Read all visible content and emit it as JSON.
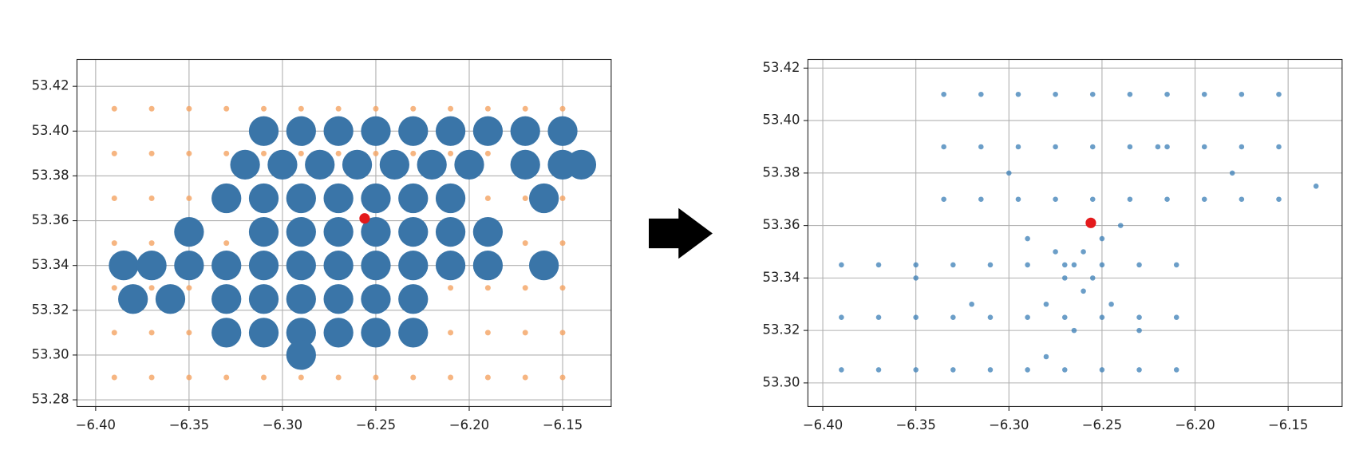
{
  "chart_data": [
    {
      "type": "scatter",
      "xlim": [
        -6.41,
        -6.124
      ],
      "ylim": [
        53.277,
        53.432
      ],
      "grid": true,
      "xticks": [
        {
          "value": -6.4,
          "label": "−6.40"
        },
        {
          "value": -6.35,
          "label": "−6.35"
        },
        {
          "value": -6.3,
          "label": "−6.30"
        },
        {
          "value": -6.25,
          "label": "−6.25"
        },
        {
          "value": -6.2,
          "label": "−6.20"
        },
        {
          "value": -6.15,
          "label": "−6.15"
        }
      ],
      "yticks": [
        {
          "value": 53.28,
          "label": "53.28"
        },
        {
          "value": 53.3,
          "label": "53.30"
        },
        {
          "value": 53.32,
          "label": "53.32"
        },
        {
          "value": 53.34,
          "label": "53.34"
        },
        {
          "value": 53.36,
          "label": "53.36"
        },
        {
          "value": 53.38,
          "label": "53.38"
        },
        {
          "value": 53.4,
          "label": "53.40"
        },
        {
          "value": 53.42,
          "label": "53.42"
        }
      ],
      "series": [
        {
          "color": "#f4a261",
          "x": [
            -6.39,
            -6.37,
            -6.35,
            -6.33,
            -6.31,
            -6.29,
            -6.27,
            -6.25,
            -6.23,
            -6.21,
            -6.19,
            -6.17,
            -6.15,
            -6.39,
            -6.37,
            -6.35,
            -6.33,
            -6.31,
            -6.29,
            -6.27,
            -6.25,
            -6.23,
            -6.21,
            -6.19,
            -6.17,
            -6.15,
            -6.39,
            -6.37,
            -6.35,
            -6.33,
            -6.31,
            -6.29,
            -6.27,
            -6.25,
            -6.23,
            -6.21,
            -6.19,
            -6.17,
            -6.15,
            -6.39,
            -6.37,
            -6.35,
            -6.33,
            -6.31,
            -6.29,
            -6.27,
            -6.25,
            -6.23,
            -6.21,
            -6.19,
            -6.17,
            -6.15,
            -6.39,
            -6.37,
            -6.35,
            -6.33,
            -6.31,
            -6.29,
            -6.27,
            -6.25,
            -6.23,
            -6.21,
            -6.19,
            -6.17,
            -6.15,
            -6.39,
            -6.37,
            -6.35,
            -6.33,
            -6.31,
            -6.29,
            -6.27,
            -6.25,
            -6.23,
            -6.21,
            -6.19,
            -6.17,
            -6.15,
            -6.39,
            -6.37,
            -6.35,
            -6.33,
            -6.31,
            -6.29,
            -6.27,
            -6.25,
            -6.23,
            -6.21,
            -6.19,
            -6.17,
            -6.15
          ],
          "y": [
            53.29,
            53.29,
            53.29,
            53.29,
            53.29,
            53.29,
            53.29,
            53.29,
            53.29,
            53.29,
            53.29,
            53.29,
            53.29,
            53.31,
            53.31,
            53.31,
            53.31,
            53.31,
            53.31,
            53.31,
            53.31,
            53.31,
            53.31,
            53.31,
            53.31,
            53.31,
            53.33,
            53.33,
            53.33,
            53.33,
            53.33,
            53.33,
            53.33,
            53.33,
            53.33,
            53.33,
            53.33,
            53.33,
            53.33,
            53.35,
            53.35,
            53.35,
            53.35,
            53.35,
            53.35,
            53.35,
            53.35,
            53.35,
            53.35,
            53.35,
            53.35,
            53.35,
            53.37,
            53.37,
            53.37,
            53.37,
            53.37,
            53.37,
            53.37,
            53.37,
            53.37,
            53.37,
            53.37,
            53.37,
            53.37,
            53.39,
            53.39,
            53.39,
            53.39,
            53.39,
            53.39,
            53.39,
            53.39,
            53.39,
            53.39,
            53.39,
            53.39,
            53.39,
            53.41,
            53.41,
            53.41,
            53.41,
            53.41,
            53.41,
            53.41,
            53.41,
            53.41,
            53.41,
            53.41,
            53.41,
            53.41
          ]
        },
        {
          "color": "#3a75a8",
          "x": [
            -6.31,
            -6.29,
            -6.27,
            -6.25,
            -6.23,
            -6.21,
            -6.19,
            -6.17,
            -6.15,
            -6.32,
            -6.3,
            -6.28,
            -6.26,
            -6.24,
            -6.22,
            -6.2,
            -6.17,
            -6.15,
            -6.14,
            -6.33,
            -6.31,
            -6.29,
            -6.27,
            -6.25,
            -6.23,
            -6.21,
            -6.16,
            -6.35,
            -6.31,
            -6.29,
            -6.27,
            -6.25,
            -6.23,
            -6.21,
            -6.19,
            -6.385,
            -6.37,
            -6.35,
            -6.33,
            -6.31,
            -6.29,
            -6.27,
            -6.25,
            -6.23,
            -6.21,
            -6.19,
            -6.16,
            -6.38,
            -6.36,
            -6.33,
            -6.31,
            -6.29,
            -6.27,
            -6.25,
            -6.23,
            -6.33,
            -6.31,
            -6.29,
            -6.27,
            -6.25,
            -6.23,
            -6.29
          ],
          "y": [
            53.4,
            53.4,
            53.4,
            53.4,
            53.4,
            53.4,
            53.4,
            53.4,
            53.4,
            53.385,
            53.385,
            53.385,
            53.385,
            53.385,
            53.385,
            53.385,
            53.385,
            53.385,
            53.385,
            53.37,
            53.37,
            53.37,
            53.37,
            53.37,
            53.37,
            53.37,
            53.37,
            53.355,
            53.355,
            53.355,
            53.355,
            53.355,
            53.355,
            53.355,
            53.355,
            53.34,
            53.34,
            53.34,
            53.34,
            53.34,
            53.34,
            53.34,
            53.34,
            53.34,
            53.34,
            53.34,
            53.34,
            53.325,
            53.325,
            53.325,
            53.325,
            53.325,
            53.325,
            53.325,
            53.325,
            53.31,
            53.31,
            53.31,
            53.31,
            53.31,
            53.31,
            53.3
          ]
        },
        {
          "color": "#e41a1c",
          "x": [
            -6.256
          ],
          "y": [
            53.361
          ]
        }
      ]
    },
    {
      "type": "scatter",
      "xlim": [
        -6.408,
        -6.121
      ],
      "ylim": [
        53.291,
        53.4233
      ],
      "grid": true,
      "xticks": [
        {
          "value": -6.4,
          "label": "−6.40"
        },
        {
          "value": -6.35,
          "label": "−6.35"
        },
        {
          "value": -6.3,
          "label": "−6.30"
        },
        {
          "value": -6.25,
          "label": "−6.25"
        },
        {
          "value": -6.2,
          "label": "−6.20"
        },
        {
          "value": -6.15,
          "label": "−6.15"
        }
      ],
      "yticks": [
        {
          "value": 53.3,
          "label": "53.30"
        },
        {
          "value": 53.32,
          "label": "53.32"
        },
        {
          "value": 53.34,
          "label": "53.34"
        },
        {
          "value": 53.36,
          "label": "53.36"
        },
        {
          "value": 53.38,
          "label": "53.38"
        },
        {
          "value": 53.4,
          "label": "53.40"
        },
        {
          "value": 53.42,
          "label": "53.42"
        }
      ],
      "series": [
        {
          "color": "#3a7db5",
          "x": [
            -6.39,
            -6.37,
            -6.35,
            -6.33,
            -6.31,
            -6.29,
            -6.27,
            -6.25,
            -6.23,
            -6.21,
            -6.39,
            -6.37,
            -6.35,
            -6.33,
            -6.31,
            -6.29,
            -6.27,
            -6.25,
            -6.23,
            -6.21,
            -6.39,
            -6.37,
            -6.35,
            -6.33,
            -6.31,
            -6.29,
            -6.27,
            -6.25,
            -6.23,
            -6.21,
            -6.335,
            -6.315,
            -6.295,
            -6.275,
            -6.255,
            -6.235,
            -6.215,
            -6.195,
            -6.175,
            -6.155,
            -6.335,
            -6.315,
            -6.295,
            -6.275,
            -6.255,
            -6.235,
            -6.215,
            -6.195,
            -6.175,
            -6.155,
            -6.335,
            -6.315,
            -6.295,
            -6.275,
            -6.255,
            -6.235,
            -6.215,
            -6.195,
            -6.175,
            -6.155,
            -6.265,
            -6.26,
            -6.27,
            -6.255,
            -6.275,
            -6.26,
            -6.25,
            -6.28,
            -6.245,
            -6.265,
            -6.29,
            -6.24,
            -6.3,
            -6.22,
            -6.18,
            -6.32,
            -6.28,
            -6.23,
            -6.135,
            -6.35
          ],
          "y": [
            53.305,
            53.305,
            53.305,
            53.305,
            53.305,
            53.305,
            53.305,
            53.305,
            53.305,
            53.305,
            53.325,
            53.325,
            53.325,
            53.325,
            53.325,
            53.325,
            53.325,
            53.325,
            53.325,
            53.325,
            53.345,
            53.345,
            53.345,
            53.345,
            53.345,
            53.345,
            53.345,
            53.345,
            53.345,
            53.345,
            53.37,
            53.37,
            53.37,
            53.37,
            53.37,
            53.37,
            53.37,
            53.37,
            53.37,
            53.37,
            53.39,
            53.39,
            53.39,
            53.39,
            53.39,
            53.39,
            53.39,
            53.39,
            53.39,
            53.39,
            53.41,
            53.41,
            53.41,
            53.41,
            53.41,
            53.41,
            53.41,
            53.41,
            53.41,
            53.41,
            53.345,
            53.35,
            53.34,
            53.34,
            53.35,
            53.335,
            53.355,
            53.33,
            53.33,
            53.32,
            53.355,
            53.36,
            53.38,
            53.39,
            53.38,
            53.33,
            53.31,
            53.32,
            53.375,
            53.34
          ]
        },
        {
          "color": "#e41a1c",
          "x": [
            -6.256
          ],
          "y": [
            53.361
          ]
        }
      ]
    }
  ]
}
